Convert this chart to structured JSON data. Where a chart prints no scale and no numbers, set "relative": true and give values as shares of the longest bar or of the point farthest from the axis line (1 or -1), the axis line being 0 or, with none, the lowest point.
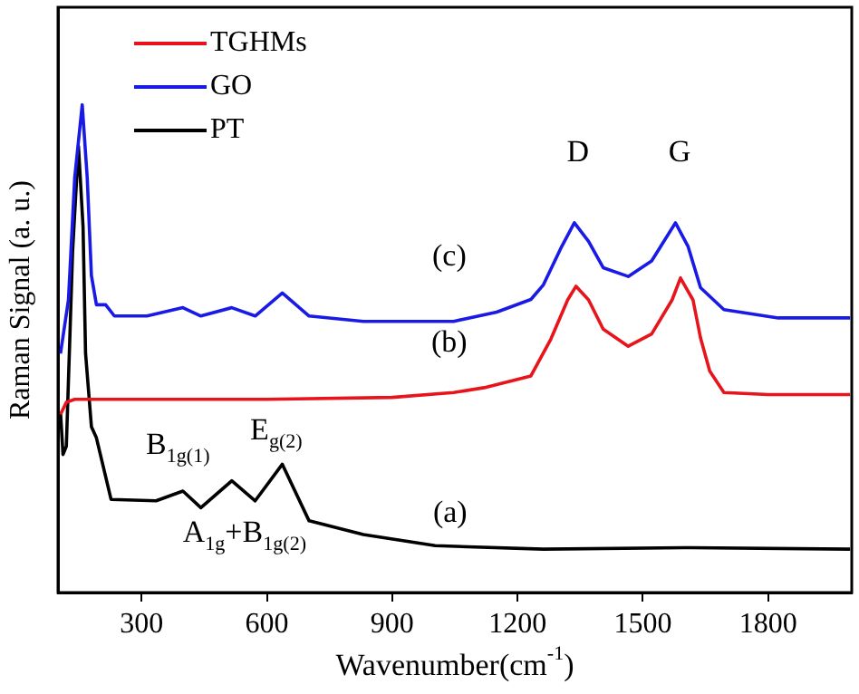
{
  "chart_data": {
    "type": "line",
    "relative": true,
    "xlabel": "Wavenumber(cm$^{-1}$)",
    "ylabel": "Raman Signal (a. u.)",
    "xlim": [
      100,
      2000
    ],
    "xticks": [
      300,
      600,
      900,
      1200,
      1500,
      1800
    ],
    "legend": "top left",
    "grid": false,
    "marker": "none",
    "line_style": "solid",
    "series": [
      {
        "name": "TGHMs",
        "color": "#e8141b",
        "x": [
          106,
          120,
          140,
          300,
          600,
          900,
          1047,
          1120,
          1232,
          1280,
          1320,
          1340,
          1370,
          1405,
          1465,
          1521,
          1570,
          1590,
          1620,
          1638,
          1660,
          1694,
          1800,
          1996
        ],
        "values": [
          0.365,
          0.39,
          0.396,
          0.396,
          0.396,
          0.4,
          0.41,
          0.42,
          0.444,
          0.52,
          0.6,
          0.628,
          0.6,
          0.54,
          0.505,
          0.53,
          0.6,
          0.645,
          0.6,
          0.522,
          0.454,
          0.41,
          0.406,
          0.406
        ]
      },
      {
        "name": "GO",
        "color": "#1a1ae6",
        "x": [
          106,
          125,
          140,
          158,
          170,
          180,
          192,
          214,
          235,
          313,
          399,
          442,
          516,
          572,
          637,
          701,
          831,
          1047,
          1150,
          1232,
          1262,
          1306,
          1336,
          1370,
          1405,
          1465,
          1521,
          1578,
          1608,
          1638,
          1694,
          1824,
          1996
        ],
        "values": [
          0.49,
          0.6,
          0.85,
          1.0,
          0.85,
          0.65,
          0.59,
          0.59,
          0.567,
          0.567,
          0.584,
          0.567,
          0.584,
          0.567,
          0.614,
          0.567,
          0.556,
          0.556,
          0.575,
          0.601,
          0.631,
          0.71,
          0.758,
          0.72,
          0.666,
          0.648,
          0.68,
          0.758,
          0.71,
          0.625,
          0.58,
          0.563,
          0.563
        ]
      },
      {
        "name": "PT",
        "color": "#000000",
        "x": [
          106,
          112,
          120,
          135,
          149,
          160,
          166,
          180,
          192,
          227,
          335,
          399,
          442,
          516,
          572,
          637,
          701,
          831,
          1003,
          1262,
          1600,
          1996
        ],
        "values": [
          0.37,
          0.283,
          0.3,
          0.7,
          0.915,
          0.75,
          0.49,
          0.34,
          0.317,
          0.191,
          0.188,
          0.208,
          0.174,
          0.229,
          0.188,
          0.263,
          0.147,
          0.119,
          0.096,
          0.089,
          0.092,
          0.089
        ]
      }
    ],
    "annotations": [
      "D",
      "G",
      "(c)",
      "(b)",
      "(a)",
      "B$_{1g(1)}$",
      "E$_{g(2)}$",
      "A$_{1g}$+B$_{1g(2)}$"
    ]
  }
}
